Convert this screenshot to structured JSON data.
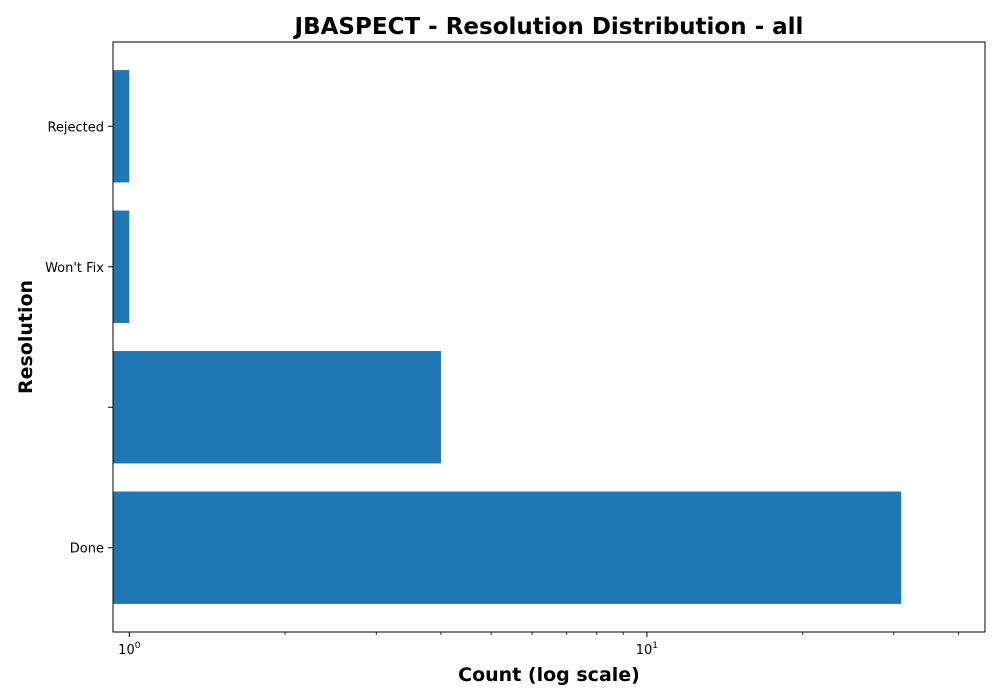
{
  "chart_data": {
    "type": "bar",
    "orientation": "horizontal",
    "title": "JBASPECT - Resolution Distribution - all",
    "xlabel": "Count (log scale)",
    "ylabel": "Resolution",
    "x_scale": "log",
    "xlim": [
      0.93,
      45
    ],
    "categories": [
      "Done",
      "",
      "Won't Fix",
      "Rejected"
    ],
    "values": [
      31,
      4,
      1,
      1
    ],
    "x_ticks": [
      {
        "value": 1,
        "base": "10",
        "exp": "0"
      },
      {
        "value": 10,
        "base": "10",
        "exp": "1"
      }
    ],
    "grid": false,
    "color": "#1f77b4"
  }
}
